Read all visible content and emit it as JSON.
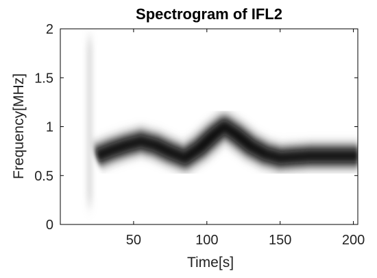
{
  "chart_data": {
    "type": "heatmap",
    "title": "Spectrogram of IFL2",
    "xlabel": "Time[s]",
    "ylabel": "Frequency[MHz]",
    "xlim": [
      0,
      203
    ],
    "ylim": [
      0,
      2
    ],
    "x_ticks": [
      {
        "value": 50,
        "label": "50"
      },
      {
        "value": 100,
        "label": "100"
      },
      {
        "value": 150,
        "label": "150"
      },
      {
        "value": 200,
        "label": "200"
      }
    ],
    "y_ticks": [
      {
        "value": 0,
        "label": "0"
      },
      {
        "value": 0.5,
        "label": "0.5"
      },
      {
        "value": 1,
        "label": "1"
      },
      {
        "value": 1.5,
        "label": "1.5"
      },
      {
        "value": 2,
        "label": "2"
      }
    ],
    "colormap": "grayscale (white = low, black = high)",
    "grid": false,
    "ridge_frequency": {
      "time": [
        25,
        35,
        45,
        55,
        65,
        75,
        85,
        95,
        105,
        112,
        120,
        130,
        140,
        150,
        160,
        170,
        180,
        190,
        203
      ],
      "frequency": [
        0.7,
        0.76,
        0.81,
        0.85,
        0.81,
        0.74,
        0.68,
        0.78,
        0.92,
        1.0,
        0.92,
        0.8,
        0.72,
        0.68,
        0.69,
        0.7,
        0.7,
        0.7,
        0.7
      ]
    },
    "onset_streak": {
      "time": 20,
      "frequency_range": [
        0.2,
        1.9
      ]
    }
  }
}
